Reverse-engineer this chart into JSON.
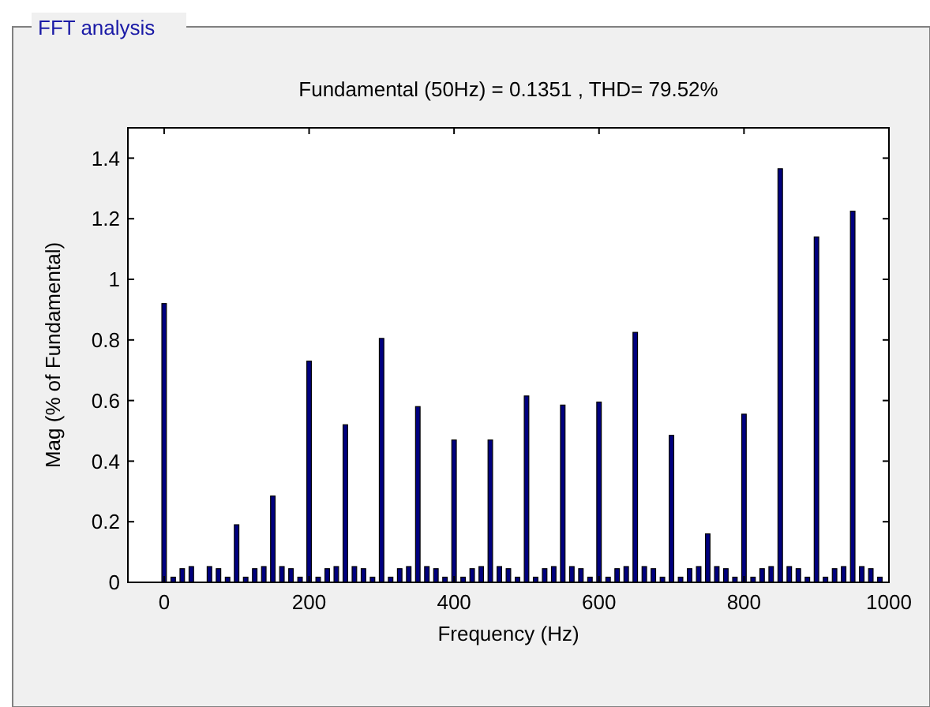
{
  "chart_data": {
    "type": "bar",
    "title": "FFT analysis",
    "subtitle": "Fundamental (50Hz) = 0.1351 , THD= 79.52%",
    "xlabel": "Frequency (Hz)",
    "ylabel": "Mag (% of Fundamental)",
    "x": [
      0,
      12.5,
      25,
      37.5,
      50,
      62.5,
      75,
      87.5,
      100,
      112.5,
      125,
      137.5,
      150,
      162.5,
      175,
      187.5,
      200,
      212.5,
      225,
      237.5,
      250,
      262.5,
      275,
      287.5,
      300,
      312.5,
      325,
      337.5,
      350,
      362.5,
      375,
      387.5,
      400,
      412.5,
      425,
      437.5,
      450,
      462.5,
      475,
      487.5,
      500,
      512.5,
      525,
      537.5,
      550,
      562.5,
      575,
      587.5,
      600,
      612.5,
      625,
      637.5,
      650,
      662.5,
      675,
      687.5,
      700,
      712.5,
      725,
      737.5,
      750,
      762.5,
      775,
      787.5,
      800,
      812.5,
      825,
      837.5,
      850,
      862.5,
      875,
      887.5,
      900,
      912.5,
      925,
      937.5,
      950,
      962.5,
      975,
      987.5
    ],
    "values": [
      0.92,
      0.017,
      0.045,
      0.052,
      null,
      0.052,
      0.045,
      0.017,
      0.19,
      0.017,
      0.045,
      0.052,
      0.285,
      0.052,
      0.045,
      0.017,
      0.73,
      0.017,
      0.045,
      0.052,
      0.52,
      0.052,
      0.045,
      0.017,
      0.805,
      0.017,
      0.045,
      0.052,
      0.58,
      0.052,
      0.045,
      0.017,
      0.47,
      0.017,
      0.045,
      0.052,
      0.47,
      0.052,
      0.045,
      0.017,
      0.615,
      0.017,
      0.045,
      0.052,
      0.585,
      0.052,
      0.045,
      0.017,
      0.595,
      0.017,
      0.045,
      0.052,
      0.825,
      0.052,
      0.045,
      0.017,
      0.485,
      0.017,
      0.045,
      0.052,
      0.16,
      0.052,
      0.045,
      0.017,
      0.555,
      0.017,
      0.045,
      0.052,
      1.365,
      0.052,
      0.045,
      0.017,
      1.14,
      0.017,
      0.045,
      0.052,
      1.225,
      0.052,
      0.045,
      0.017
    ],
    "color": "#00007f",
    "xlim": [
      -50,
      1000
    ],
    "xticks": [
      0,
      200,
      400,
      600,
      800,
      1000
    ],
    "ylim": [
      0,
      1.5
    ],
    "yticks": [
      0,
      0.2,
      0.4,
      0.6,
      0.8,
      1,
      1.2,
      1.4
    ],
    "grid": false
  }
}
